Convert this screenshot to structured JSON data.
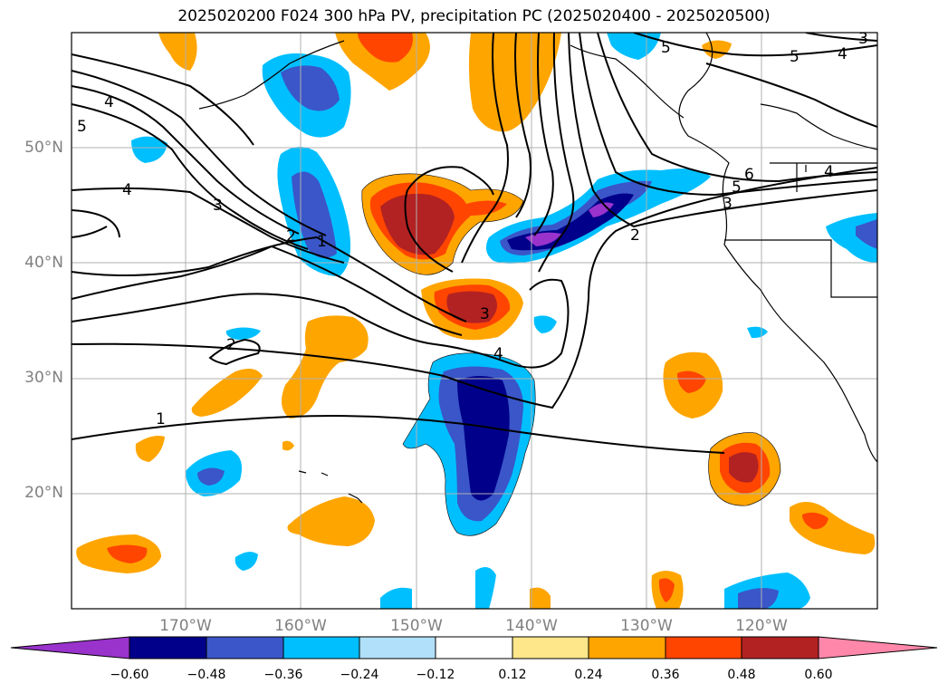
{
  "title": "2025020200 F024 300 hPa PV, precipitation PC (2025020400 - 2025020500)",
  "latitude_labels": [
    "50°N",
    "40°N",
    "30°N",
    "20°N"
  ],
  "longitude_labels": [
    "170°W",
    "160°W",
    "150°W",
    "140°W",
    "130°W",
    "120°W"
  ],
  "pv_contour_labels": [
    "1",
    "2",
    "3",
    "4",
    "5",
    "6"
  ],
  "colorbar": {
    "ticks": [
      "−0.60",
      "−0.48",
      "−0.36",
      "−0.24",
      "−0.12",
      "0.12",
      "0.24",
      "0.36",
      "0.48",
      "0.60"
    ],
    "colors": [
      "#9933cc",
      "#00008b",
      "#3a56c8",
      "#00bfff",
      "#b0e0fa",
      "#ffffff",
      "#fee68a",
      "#ffa500",
      "#ff4500",
      "#b22222",
      "#ff88aa"
    ]
  }
}
